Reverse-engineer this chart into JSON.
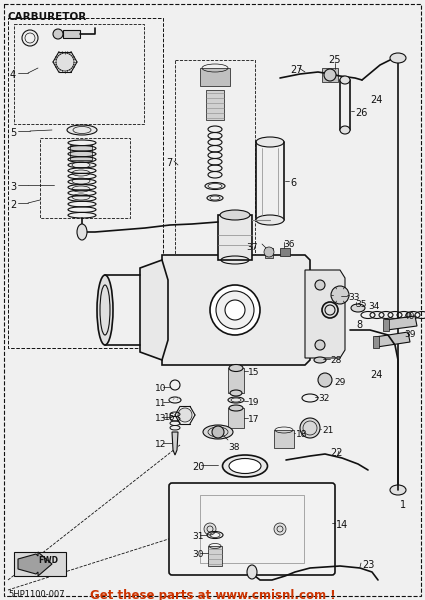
{
  "title": "CARBURETOR",
  "bg_color": "#f5f5f5",
  "line_color": "#1a1a1a",
  "footer_text": "5HP1100-007",
  "ad_text": "Get these parts at www.cmisnl.com !",
  "fwd_label": "FWD",
  "watermark": "www\ncmisnl\n.com"
}
